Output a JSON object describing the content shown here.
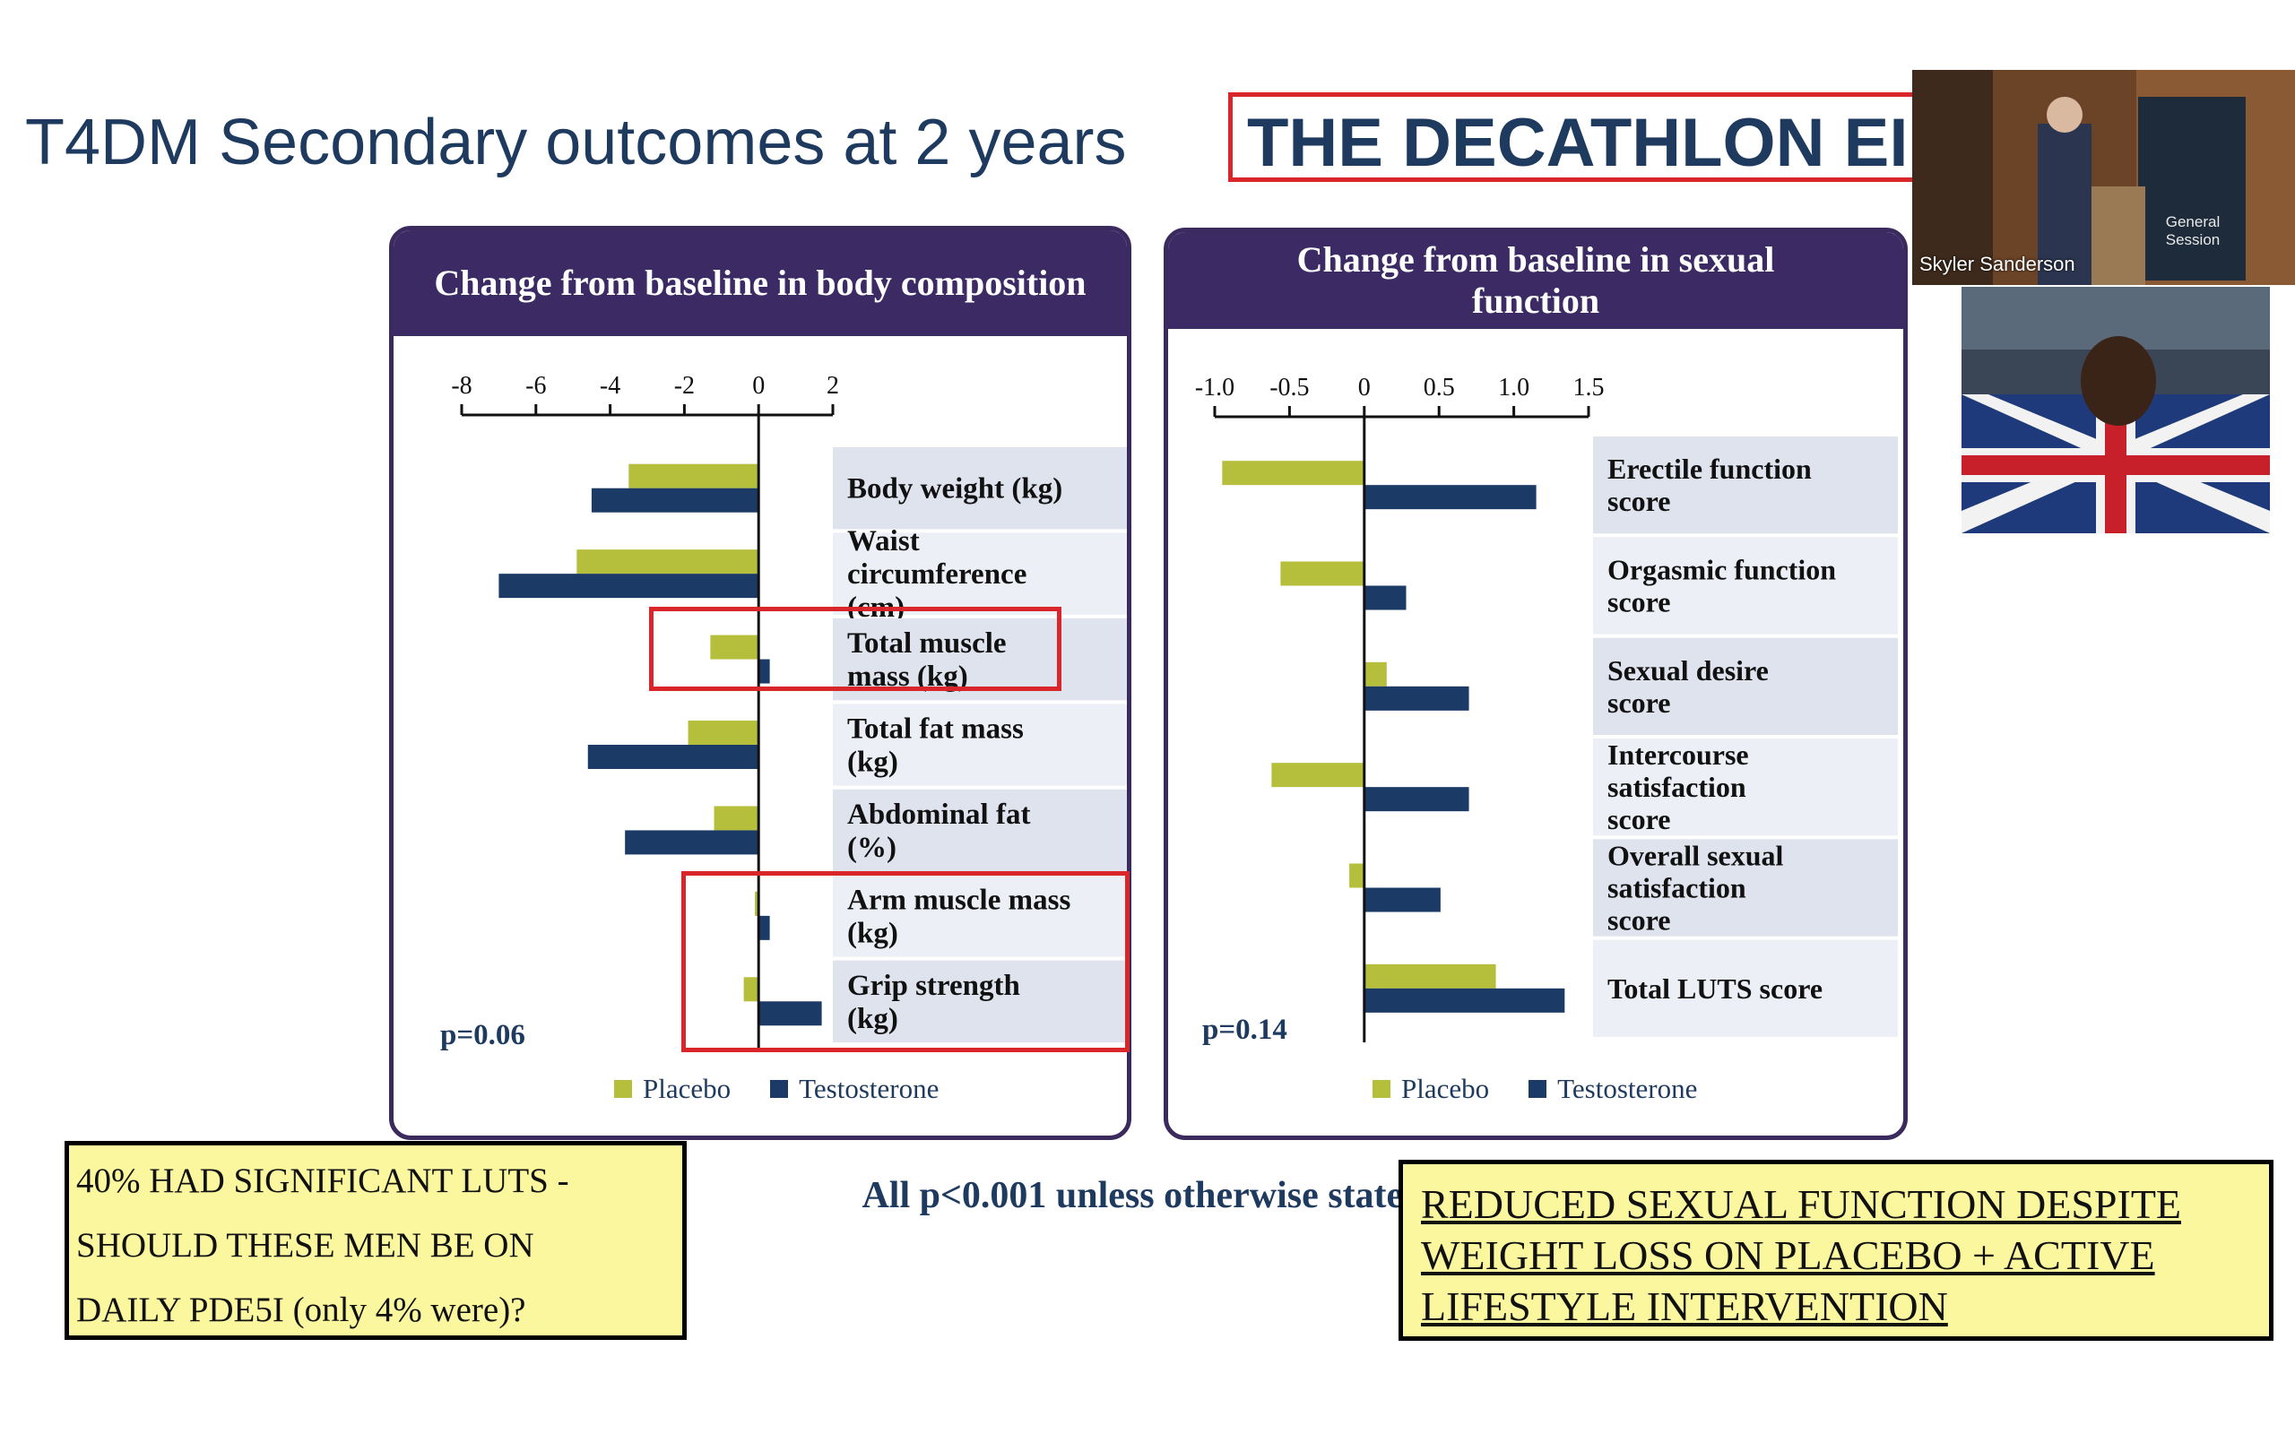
{
  "slide": {
    "title": "T4DM Secondary outcomes at 2 years",
    "highlight": "THE DECATHLON EI"
  },
  "chart_data": [
    {
      "type": "bar",
      "orientation": "horizontal",
      "title": "Change from baseline in body composition",
      "categories": [
        "Body weight (kg)",
        "Waist circumference (cm)",
        "Total muscle mass (kg)",
        "Total fat mass (kg)",
        "Abdominal fat (%)",
        "Arm muscle mass (kg)",
        "Grip strength (kg)"
      ],
      "series": [
        {
          "name": "Placebo",
          "color": "#b5bf3c",
          "values": [
            -3.5,
            -4.9,
            -1.3,
            -1.9,
            -1.2,
            -0.1,
            -0.4
          ]
        },
        {
          "name": "Testosterone",
          "color": "#1c3a66",
          "values": [
            -4.5,
            -7.0,
            0.3,
            -4.6,
            -3.6,
            0.3,
            1.7
          ]
        }
      ],
      "xticks": [
        -8,
        -6,
        -4,
        -2,
        0,
        2
      ],
      "xlim": [
        -8,
        2
      ],
      "p_value": "p=0.06",
      "highlighted_categories": [
        "Total muscle mass (kg)",
        "Arm muscle mass (kg)",
        "Grip strength (kg)"
      ]
    },
    {
      "type": "bar",
      "orientation": "horizontal",
      "title": "Change from baseline in sexual function",
      "categories": [
        "Erectile function score",
        "Orgasmic function score",
        "Sexual desire score",
        "Intercourse satisfaction score",
        "Overall sexual satisfaction score",
        "Total LUTS score"
      ],
      "series": [
        {
          "name": "Placebo",
          "color": "#b5bf3c",
          "values": [
            -0.95,
            -0.56,
            0.15,
            -0.62,
            -0.1,
            0.88
          ]
        },
        {
          "name": "Testosterone",
          "color": "#1c3a66",
          "values": [
            1.15,
            0.28,
            0.7,
            0.7,
            0.51,
            1.34
          ]
        }
      ],
      "xticks": [
        "-1.0",
        "-0.5",
        "0",
        "0.5",
        "1.0",
        "1.5"
      ],
      "xlim": [
        -1.0,
        1.5
      ],
      "p_value": "p=0.14"
    }
  ],
  "legend": {
    "placebo": "Placebo",
    "testosterone": "Testosterone"
  },
  "notes": {
    "left": [
      "40% HAD SIGNIFICANT LUTS -",
      "SHOULD  THESE MEN BE ON",
      "DAILY PDE5I (only 4% were)?"
    ],
    "center": "All p<0.001 unless otherwise stated",
    "right": [
      "REDUCED SEXUAL FUNCTION DESPITE",
      "WEIGHT LOSS ON PLACEBO + ACTIVE",
      "LIFESTYLE INTERVENTION"
    ]
  },
  "video": {
    "speaker_name": "Skyler Sanderson",
    "banner_text": "General Session"
  }
}
